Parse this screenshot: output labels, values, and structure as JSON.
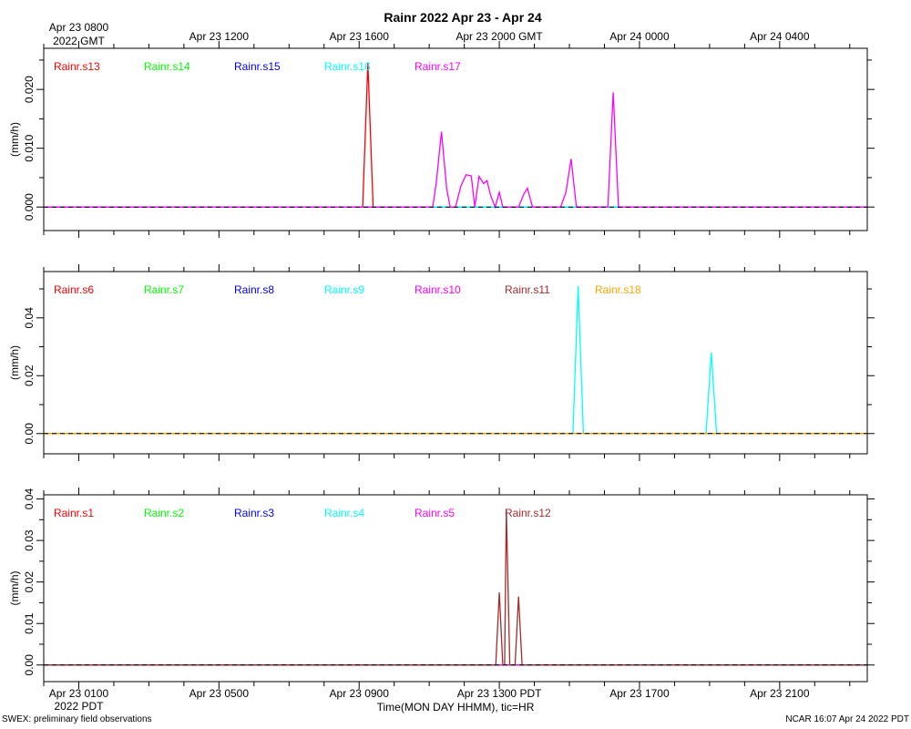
{
  "title": "Rainr 2022 Apr 23 - Apr 24",
  "top_axis": {
    "ticks": [
      "Apr 23 0800",
      "Apr 23 1200",
      "Apr 23 1600",
      "Apr 23 2000 GMT",
      "Apr 24 0000",
      "Apr 24 0400"
    ],
    "tick_hours": [
      0,
      4,
      8,
      12,
      16,
      20
    ],
    "first_sub": "2022 GMT"
  },
  "bottom_axis": {
    "ticks": [
      "Apr 23 0100",
      "Apr 23 0500",
      "Apr 23 0900",
      "Apr 23 1300 PDT",
      "Apr 23 1700",
      "Apr 23 2100"
    ],
    "tick_hours": [
      0,
      4,
      8,
      12,
      16,
      20
    ],
    "first_sub": "2022 PDT",
    "label": "Time(MON DAY HHMM), tic=HR"
  },
  "footer_left": "SWEX: preliminary field observations",
  "footer_right": "NCAR 16:07 Apr 24 2022 PDT",
  "chart_data": [
    {
      "type": "line",
      "ylabel": "(mm/h)",
      "xlim": [
        -1,
        22.5
      ],
      "ylim": [
        -0.004,
        0.027
      ],
      "yticks": [
        0.0,
        0.01,
        0.02
      ],
      "ytick_labels": [
        "0.000",
        "0.010",
        "0.020"
      ],
      "series": [
        {
          "name": "Rainr.s13",
          "color": "#ff0000",
          "x": [
            -1,
            8.1,
            8.25,
            8.4,
            22.5
          ],
          "y": [
            0,
            0,
            0.0245,
            0,
            0
          ]
        },
        {
          "name": "Rainr.s14",
          "color": "#00ff00",
          "x": [
            -1,
            22.5
          ],
          "y": [
            0,
            0
          ]
        },
        {
          "name": "Rainr.s15",
          "color": "#0000ff",
          "x": [
            -1,
            22.5
          ],
          "y": [
            0,
            0
          ]
        },
        {
          "name": "Rainr.s16",
          "color": "#00ffff",
          "x": [
            -1,
            22.5
          ],
          "y": [
            0,
            0
          ]
        },
        {
          "name": "Rainr.s17",
          "color": "#ff00ff",
          "x": [
            -1,
            10.1,
            10.2,
            10.35,
            10.5,
            10.6,
            10.75,
            10.9,
            11.05,
            11.2,
            11.3,
            11.42,
            11.55,
            11.65,
            11.75,
            11.88,
            12.0,
            12.1,
            12.55,
            12.7,
            12.8,
            12.95,
            13.75,
            13.9,
            14.05,
            14.2,
            15.1,
            15.25,
            15.4,
            22.5
          ],
          "y": [
            0,
            0,
            0.004,
            0.0128,
            0.003,
            0,
            0,
            0.0035,
            0.0055,
            0.0053,
            0,
            0.0052,
            0.004,
            0.0045,
            0.002,
            0,
            0.0025,
            0,
            0,
            0.0022,
            0.0032,
            0,
            0,
            0.0025,
            0.0082,
            0,
            0,
            0.0195,
            0,
            0
          ]
        }
      ]
    },
    {
      "type": "line",
      "ylabel": "(mm/h)",
      "xlim": [
        -1,
        22.5
      ],
      "ylim": [
        -0.007,
        0.056
      ],
      "yticks": [
        0.0,
        0.02,
        0.04
      ],
      "ytick_labels": [
        "0.00",
        "0.02",
        "0.04"
      ],
      "series": [
        {
          "name": "Rainr.s6",
          "color": "#ff0000",
          "x": [
            -1,
            22.5
          ],
          "y": [
            0,
            0
          ]
        },
        {
          "name": "Rainr.s7",
          "color": "#00ff00",
          "x": [
            -1,
            22.5
          ],
          "y": [
            0,
            0
          ]
        },
        {
          "name": "Rainr.s8",
          "color": "#0000ff",
          "x": [
            -1,
            22.5
          ],
          "y": [
            0,
            0
          ]
        },
        {
          "name": "Rainr.s9",
          "color": "#00ffff",
          "x": [
            -1,
            14.1,
            14.25,
            14.4,
            17.9,
            18.05,
            18.2,
            22.5
          ],
          "y": [
            0,
            0,
            0.051,
            0,
            0,
            0.028,
            0,
            0
          ]
        },
        {
          "name": "Rainr.s10",
          "color": "#ff00ff",
          "x": [
            -1,
            22.5
          ],
          "y": [
            0,
            0
          ]
        },
        {
          "name": "Rainr.s11",
          "color": "#a52a2a",
          "x": [
            -1,
            22.5
          ],
          "y": [
            0,
            0
          ]
        },
        {
          "name": "Rainr.s18",
          "color": "#ffa500",
          "x": [
            -1,
            22.5
          ],
          "y": [
            0,
            0
          ]
        }
      ]
    },
    {
      "type": "line",
      "ylabel": "(mm/h)",
      "xlim": [
        -1,
        22.5
      ],
      "ylim": [
        -0.004,
        0.041
      ],
      "yticks": [
        0.0,
        0.01,
        0.02,
        0.03,
        0.04
      ],
      "ytick_labels": [
        "0.00",
        "0.01",
        "0.02",
        "0.03",
        "0.04"
      ],
      "series": [
        {
          "name": "Rainr.s1",
          "color": "#ff0000",
          "x": [
            -1,
            22.5
          ],
          "y": [
            0,
            0
          ]
        },
        {
          "name": "Rainr.s2",
          "color": "#00ff00",
          "x": [
            -1,
            22.5
          ],
          "y": [
            0,
            0
          ]
        },
        {
          "name": "Rainr.s3",
          "color": "#0000ff",
          "x": [
            -1,
            22.5
          ],
          "y": [
            0,
            0
          ]
        },
        {
          "name": "Rainr.s4",
          "color": "#00ffff",
          "x": [
            -1,
            22.5
          ],
          "y": [
            0,
            0
          ]
        },
        {
          "name": "Rainr.s5",
          "color": "#ff00ff",
          "x": [
            -1,
            22.5
          ],
          "y": [
            0,
            0
          ]
        },
        {
          "name": "Rainr.s12",
          "color": "#a52a2a",
          "x": [
            -1,
            11.9,
            12.0,
            12.1,
            12.15,
            12.2,
            12.3,
            12.45,
            12.55,
            12.65,
            12.8,
            22.5
          ],
          "y": [
            0,
            0,
            0.0175,
            0,
            0.0,
            0.0373,
            0,
            0,
            0.0165,
            0,
            0,
            0
          ]
        }
      ]
    }
  ]
}
